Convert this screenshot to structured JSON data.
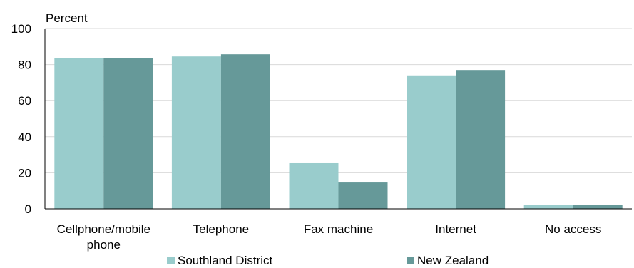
{
  "chart_data": {
    "type": "bar",
    "title": "",
    "xlabel": "",
    "ylabel": "Percent",
    "ylim": [
      0,
      100
    ],
    "yticks": [
      0,
      20,
      40,
      60,
      80,
      100
    ],
    "grid": true,
    "legend_position": "bottom",
    "categories": [
      [
        "Cellphone/mobile",
        "phone"
      ],
      [
        "Telephone"
      ],
      [
        "Fax machine"
      ],
      [
        "Internet"
      ],
      [
        "No access"
      ]
    ],
    "series": [
      {
        "name": "Southland District",
        "color": "#99cccc",
        "values": [
          83.5,
          84.5,
          25.7,
          74.0,
          2.0
        ]
      },
      {
        "name": "New Zealand",
        "color": "#669999",
        "values": [
          83.5,
          85.7,
          14.6,
          77.0,
          2.0
        ]
      }
    ]
  }
}
